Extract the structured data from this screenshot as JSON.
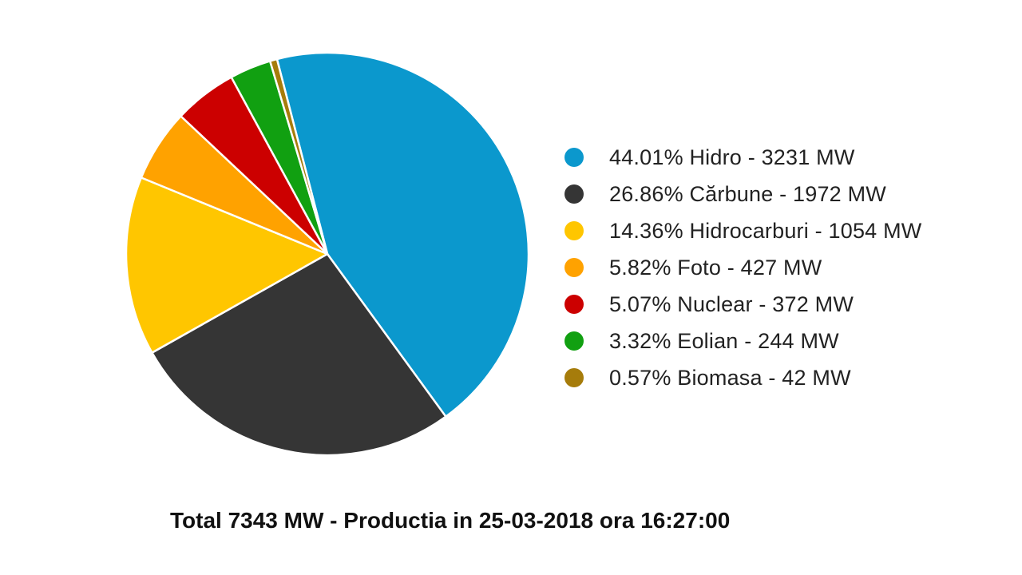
{
  "chart_data": {
    "type": "pie",
    "caption": "Total 7343 MW - Productia in 25-03-2018 ora 16:27:00",
    "slices": [
      {
        "label": "44.01% Hidro - 3231 MW",
        "value": 3231,
        "percent": 44.01,
        "color": "#0b98cd"
      },
      {
        "label": "26.86% Cărbune - 1972 MW",
        "value": 1972,
        "percent": 26.86,
        "color": "#353535"
      },
      {
        "label": "14.36% Hidrocarburi - 1054 MW",
        "value": 1054,
        "percent": 14.36,
        "color": "#ffc600"
      },
      {
        "label": "5.82% Foto - 427 MW",
        "value": 427,
        "percent": 5.82,
        "color": "#ffa200"
      },
      {
        "label": "5.07% Nuclear - 372 MW",
        "value": 372,
        "percent": 5.07,
        "color": "#cc0000"
      },
      {
        "label": "3.32% Eolian - 244 MW",
        "value": 244,
        "percent": 3.32,
        "color": "#11a011"
      },
      {
        "label": "0.57% Biomasa - 42 MW",
        "value": 42,
        "percent": 0.57,
        "color": "#a67c0b"
      }
    ],
    "legend_position": "right"
  }
}
